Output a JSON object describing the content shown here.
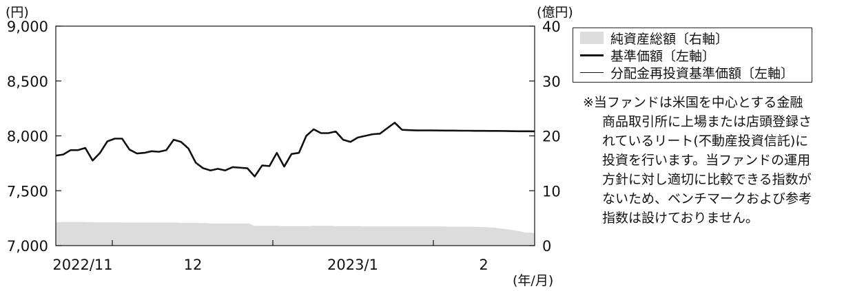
{
  "chart_data": {
    "type": "line",
    "y_unit_left": "(円)",
    "y_unit_right": "(億円)",
    "x_unit": "(年/月)",
    "yticks_left": [
      "9,000",
      "8,500",
      "8,000",
      "7,500",
      "7,000"
    ],
    "yticks_right": [
      "40",
      "30",
      "20",
      "10",
      "0"
    ],
    "ylim_left": [
      7000,
      9000
    ],
    "ylim_right": [
      0,
      40
    ],
    "xticks": [
      "2022/11",
      "12",
      "2023/1",
      "2"
    ],
    "grid": false,
    "legend_position": "top-right",
    "series": [
      {
        "name": "純資産総額〔右軸〕",
        "axis": "right",
        "style": "area",
        "values": [
          4.3,
          4.3,
          4.3,
          4.3,
          4.3,
          4.3,
          4.3,
          4.25,
          4.25,
          4.25,
          4.25,
          4.25,
          4.25,
          4.25,
          4.2,
          4.2,
          4.2,
          4.2,
          4.2,
          4.2,
          4.2,
          4.2,
          4.2,
          4.2,
          4.2,
          4.2,
          4.15,
          4.15,
          4.15,
          4.15,
          4.1,
          4.1,
          4.05,
          4.05,
          4.05,
          4.05,
          4.05,
          4.05,
          4.05,
          4.05,
          4.05,
          3.6,
          3.6,
          3.6,
          3.6,
          3.6,
          3.6,
          3.55,
          3.55,
          3.55,
          3.55,
          3.55,
          3.55,
          3.6,
          3.6,
          3.6,
          3.6,
          3.6,
          3.55,
          3.55,
          3.55,
          3.55,
          3.55,
          3.55,
          3.5,
          3.5,
          3.5,
          3.5,
          3.5,
          3.5,
          3.5,
          3.5,
          3.5,
          3.5,
          3.5,
          3.5,
          3.5,
          3.5,
          3.5,
          3.5,
          3.5,
          3.45,
          3.45,
          3.45,
          3.45,
          3.45,
          3.45,
          3.4,
          3.4,
          3.35,
          3.3,
          3.25,
          3.1,
          3.0,
          2.9,
          2.75,
          2.6,
          2.4,
          2.35,
          2.3
        ]
      },
      {
        "name": "基準価額〔左軸〕",
        "axis": "left",
        "style": "thick",
        "values": [
          7820,
          7830,
          7870,
          7870,
          7890,
          7775,
          7845,
          7950,
          7975,
          7975,
          7875,
          7840,
          7845,
          7860,
          7855,
          7870,
          7965,
          7945,
          7885,
          7755,
          7705,
          7685,
          7700,
          7685,
          7715,
          7710,
          7705,
          7630,
          7730,
          7725,
          7845,
          7720,
          7835,
          7845,
          8000,
          8060,
          8025,
          8025,
          8040,
          7965,
          7945,
          7985,
          8000,
          8015,
          8020,
          8070,
          8120,
          8055,
          8052,
          8050,
          8050,
          8050,
          8049,
          8048,
          8048,
          8047,
          8047,
          8046,
          8046,
          8045,
          8045,
          8044,
          8043,
          8042,
          8042,
          8041
        ]
      },
      {
        "name": "分配金再投資基準価額〔左軸〕",
        "axis": "left",
        "style": "thin",
        "values": [
          7820,
          7830,
          7870,
          7870,
          7890,
          7775,
          7845,
          7950,
          7975,
          7975,
          7875,
          7840,
          7845,
          7860,
          7855,
          7870,
          7965,
          7945,
          7885,
          7755,
          7705,
          7685,
          7700,
          7685,
          7715,
          7710,
          7705,
          7630,
          7730,
          7725,
          7845,
          7720,
          7835,
          7845,
          8000,
          8060,
          8025,
          8025,
          8040,
          7965,
          7945,
          7985,
          8000,
          8015,
          8020,
          8070,
          8120,
          8055,
          8052,
          8050,
          8050,
          8050,
          8049,
          8048,
          8048,
          8047,
          8047,
          8046,
          8046,
          8045,
          8045,
          8044,
          8043,
          8042,
          8042,
          8041
        ]
      }
    ]
  },
  "legend": {
    "items": [
      "純資産総額〔右軸〕",
      "基準価額〔左軸〕",
      "分配金再投資基準価額〔左軸〕"
    ]
  },
  "note": {
    "lines": [
      "※当ファンドは米国を中心とする金融",
      "商品取引所に上場または店頭登録さ",
      "れているリート(不動産投資信託)に",
      "投資を行います。当ファンドの運用",
      "方針に対し適切に比較できる指数が",
      "ないため、ベンチマークおよび参考",
      "指数は設けておりません。"
    ]
  }
}
